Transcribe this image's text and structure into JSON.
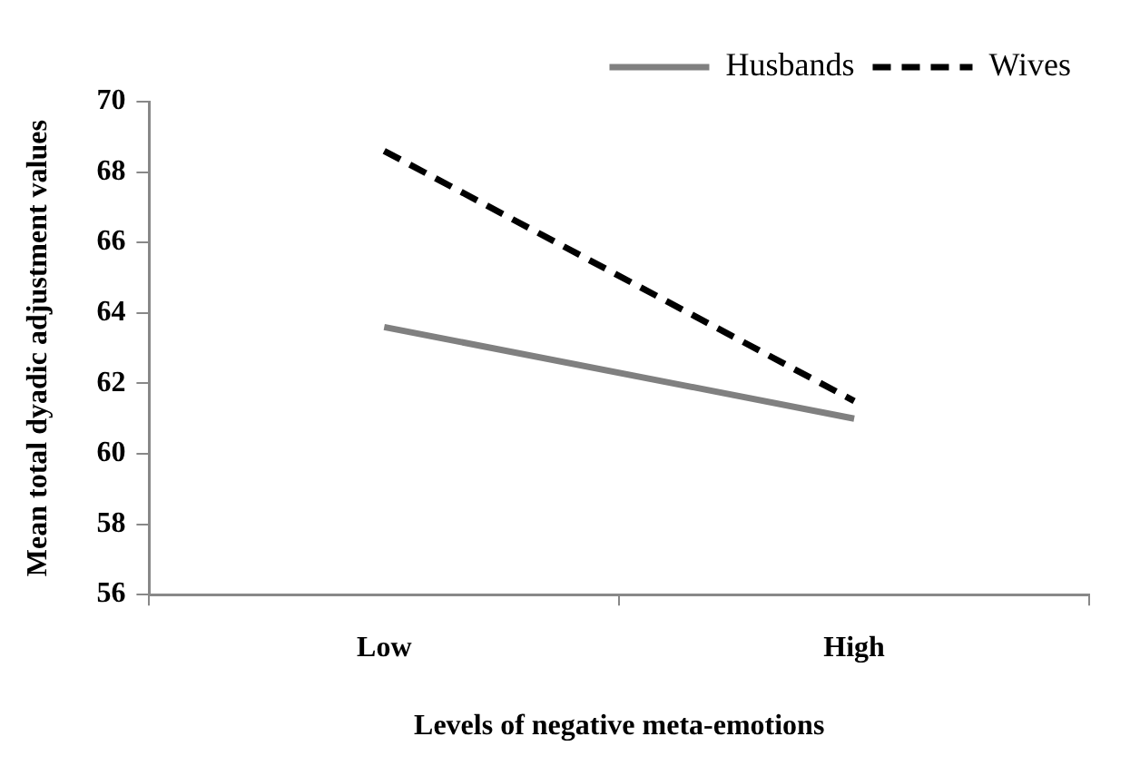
{
  "chart_data": {
    "type": "line",
    "xlabel": "Levels of negative meta-emotions",
    "ylabel": "Mean total dyadic adjustment values",
    "categories": [
      "Low",
      "High"
    ],
    "series": [
      {
        "name": "Husbands",
        "color": "#808080",
        "values": [
          63.6,
          61.0
        ],
        "line_style": "solid"
      },
      {
        "name": "Wives",
        "color": "#000000",
        "values": [
          68.6,
          61.5
        ],
        "line_style": "dashed"
      }
    ],
    "ylim": [
      56,
      70
    ],
    "yticks": [
      56,
      58,
      60,
      62,
      64,
      66,
      68,
      70
    ],
    "grid": false,
    "legend": "top right",
    "marker": "none"
  }
}
